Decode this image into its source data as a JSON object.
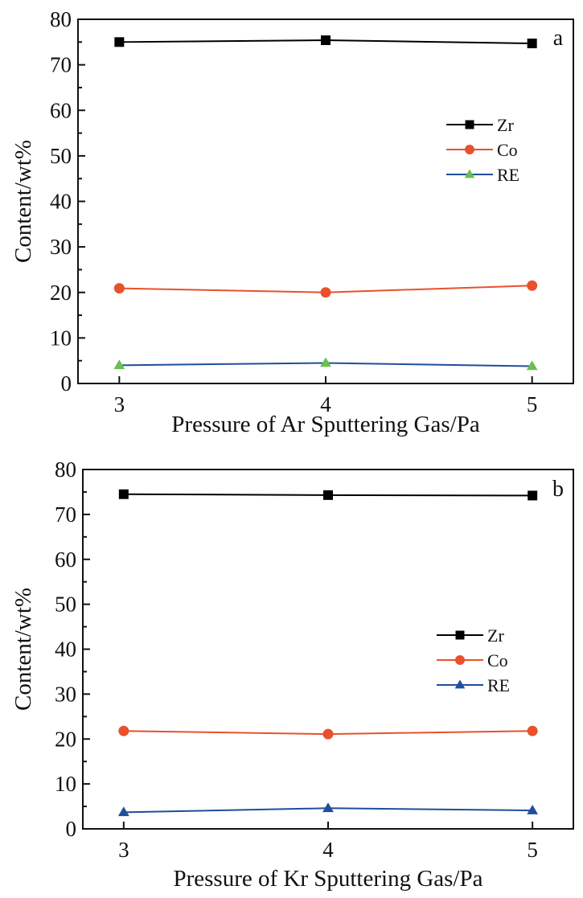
{
  "chart_data": [
    {
      "type": "line",
      "panel_label": "a",
      "title": "",
      "xlabel": "Pressure of Ar Sputtering Gas/Pa",
      "ylabel": "Content/wt%",
      "x": [
        3,
        4,
        5
      ],
      "x_ticks": [
        "3",
        "4",
        "5"
      ],
      "xlim": [
        2.8,
        5.2
      ],
      "ylim": [
        0,
        80
      ],
      "y_ticks": [
        "0",
        "10",
        "20",
        "30",
        "40",
        "50",
        "60",
        "70",
        "80"
      ],
      "grid": false,
      "legend_position": "right-middle",
      "series": [
        {
          "name": "Zr",
          "values": [
            75.0,
            75.4,
            74.7
          ],
          "color": "#000000",
          "marker": "square",
          "marker_color": "#000000"
        },
        {
          "name": "Co",
          "values": [
            20.9,
            20.0,
            21.5
          ],
          "color": "#e8512b",
          "marker": "circle",
          "marker_color": "#e8512b"
        },
        {
          "name": "RE",
          "values": [
            4.0,
            4.5,
            3.8
          ],
          "color": "#1f4e9c",
          "marker": "triangle",
          "marker_color": "#6cbf4f"
        }
      ]
    },
    {
      "type": "line",
      "panel_label": "b",
      "title": "",
      "xlabel": "Pressure of Kr Sputtering Gas/Pa",
      "ylabel": "Content/wt%",
      "x": [
        3,
        4,
        5
      ],
      "x_ticks": [
        "3",
        "4",
        "5"
      ],
      "xlim": [
        2.8,
        5.2
      ],
      "ylim": [
        0,
        80
      ],
      "y_ticks": [
        "0",
        "10",
        "20",
        "30",
        "40",
        "50",
        "60",
        "70",
        "80"
      ],
      "grid": false,
      "legend_position": "right-middle",
      "series": [
        {
          "name": "Zr",
          "values": [
            74.5,
            74.3,
            74.2
          ],
          "color": "#000000",
          "marker": "square",
          "marker_color": "#000000"
        },
        {
          "name": "Co",
          "values": [
            21.8,
            21.1,
            21.8
          ],
          "color": "#e8512b",
          "marker": "circle",
          "marker_color": "#e8512b"
        },
        {
          "name": "RE",
          "values": [
            3.7,
            4.6,
            4.1
          ],
          "color": "#1f4e9c",
          "marker": "triangle",
          "marker_color": "#1f4e9c"
        }
      ]
    }
  ]
}
